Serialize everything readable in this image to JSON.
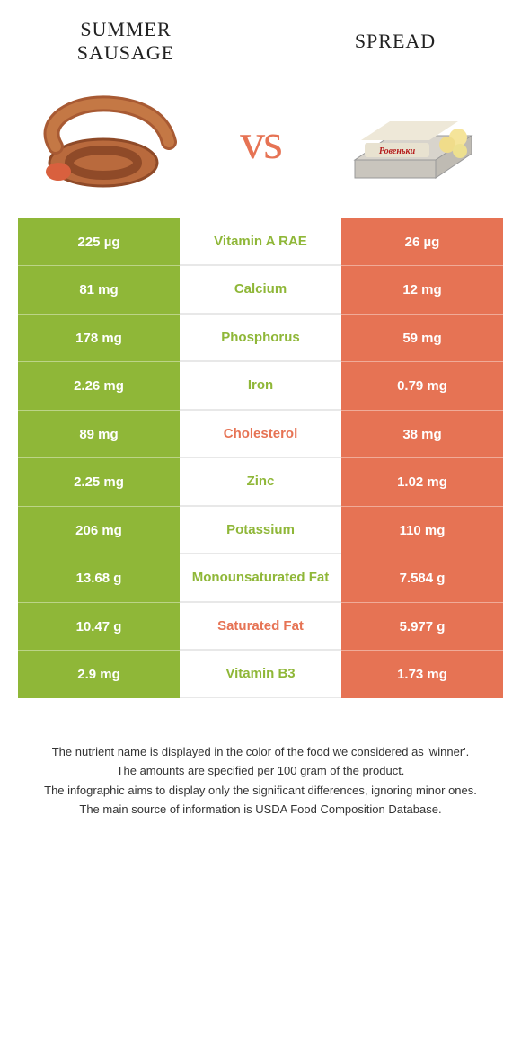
{
  "colors": {
    "left": "#8fb738",
    "right": "#e67354",
    "bg": "#ffffff"
  },
  "titles": {
    "left": "Summer Sausage",
    "right": "Spread",
    "vs": "vs"
  },
  "comparison_table": {
    "type": "table",
    "columns": [
      "left_value",
      "nutrient",
      "right_value"
    ],
    "left_bg": "#8fb738",
    "right_bg": "#e67354",
    "value_text_color": "#ffffff",
    "nutrient_fontsize": 15,
    "value_fontsize": 15,
    "rows": [
      {
        "left": "225 µg",
        "nutrient": "Vitamin A RAE",
        "right": "26 µg",
        "winner": "left"
      },
      {
        "left": "81 mg",
        "nutrient": "Calcium",
        "right": "12 mg",
        "winner": "left"
      },
      {
        "left": "178 mg",
        "nutrient": "Phosphorus",
        "right": "59 mg",
        "winner": "left"
      },
      {
        "left": "2.26 mg",
        "nutrient": "Iron",
        "right": "0.79 mg",
        "winner": "left"
      },
      {
        "left": "89 mg",
        "nutrient": "Cholesterol",
        "right": "38 mg",
        "winner": "right"
      },
      {
        "left": "2.25 mg",
        "nutrient": "Zinc",
        "right": "1.02 mg",
        "winner": "left"
      },
      {
        "left": "206 mg",
        "nutrient": "Potassium",
        "right": "110 mg",
        "winner": "left"
      },
      {
        "left": "13.68 g",
        "nutrient": "Monounsaturated Fat",
        "right": "7.584 g",
        "winner": "left"
      },
      {
        "left": "10.47 g",
        "nutrient": "Saturated Fat",
        "right": "5.977 g",
        "winner": "right"
      },
      {
        "left": "2.9 mg",
        "nutrient": "Vitamin B3",
        "right": "1.73 mg",
        "winner": "left"
      }
    ]
  },
  "footer": {
    "line1": "The nutrient name is displayed in the color of the food we considered as 'winner'.",
    "line2": "The amounts are specified per 100 gram of the product.",
    "line3": "The infographic aims to display only the significant differences, ignoring minor ones.",
    "line4": "The main source of information is USDA Food Composition Database."
  }
}
